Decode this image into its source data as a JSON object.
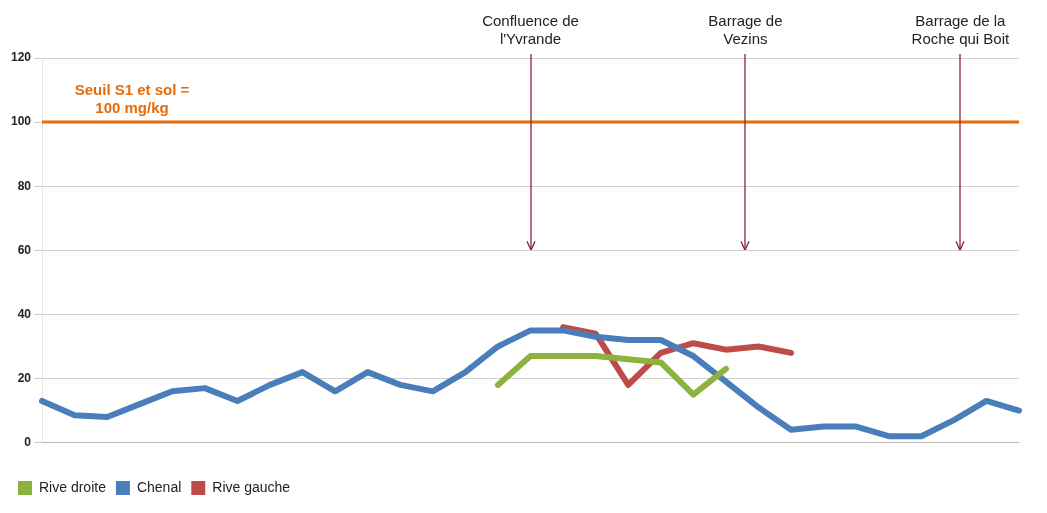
{
  "chart_data": {
    "type": "line",
    "categories": [
      null,
      null,
      null,
      null,
      null,
      null,
      null,
      null,
      null,
      null,
      null,
      null,
      null,
      null,
      null,
      null,
      null,
      null,
      null,
      null,
      null,
      null,
      null,
      null,
      null,
      null,
      null,
      null,
      null,
      null,
      null
    ],
    "series": [
      {
        "name": "Rive droite",
        "color": "#8db33f",
        "values": [
          null,
          null,
          null,
          null,
          null,
          null,
          null,
          null,
          null,
          null,
          null,
          null,
          null,
          null,
          18,
          27,
          27,
          27,
          26,
          25,
          15,
          23,
          null,
          null,
          null,
          null,
          null,
          null,
          null,
          null,
          null
        ]
      },
      {
        "name": "Chenal",
        "color": "#4a7ebb",
        "values": [
          13,
          8.5,
          8,
          12,
          16,
          17,
          13,
          18,
          22,
          16,
          22,
          18,
          16,
          22,
          30,
          35,
          35,
          33,
          32,
          32,
          27,
          19,
          11,
          4,
          5,
          5,
          2,
          2,
          7,
          13,
          10
        ]
      },
      {
        "name": "Rive gauche",
        "color": "#be4b48",
        "values": [
          null,
          null,
          null,
          null,
          null,
          null,
          null,
          null,
          null,
          null,
          null,
          null,
          null,
          null,
          null,
          null,
          36,
          34,
          18,
          28,
          31,
          29,
          30,
          28,
          null,
          null,
          null,
          null,
          null,
          null,
          null
        ]
      }
    ],
    "ylim": [
      0,
      120
    ],
    "yticks": [
      0,
      20,
      40,
      60,
      80,
      100,
      120
    ],
    "grid": "y",
    "legend": "bottom left",
    "marker": "none",
    "line_style": "solid",
    "ref_lines": [
      {
        "axis": "y",
        "value": 100,
        "label": "Seuil S1 et sol = 100 mg/kg",
        "color": "#e46c0a"
      }
    ],
    "annotations": [
      "Confluence de l'Yvrande",
      "Barrage de Vezins",
      "Barrage de la Roche qui Boit"
    ]
  }
}
